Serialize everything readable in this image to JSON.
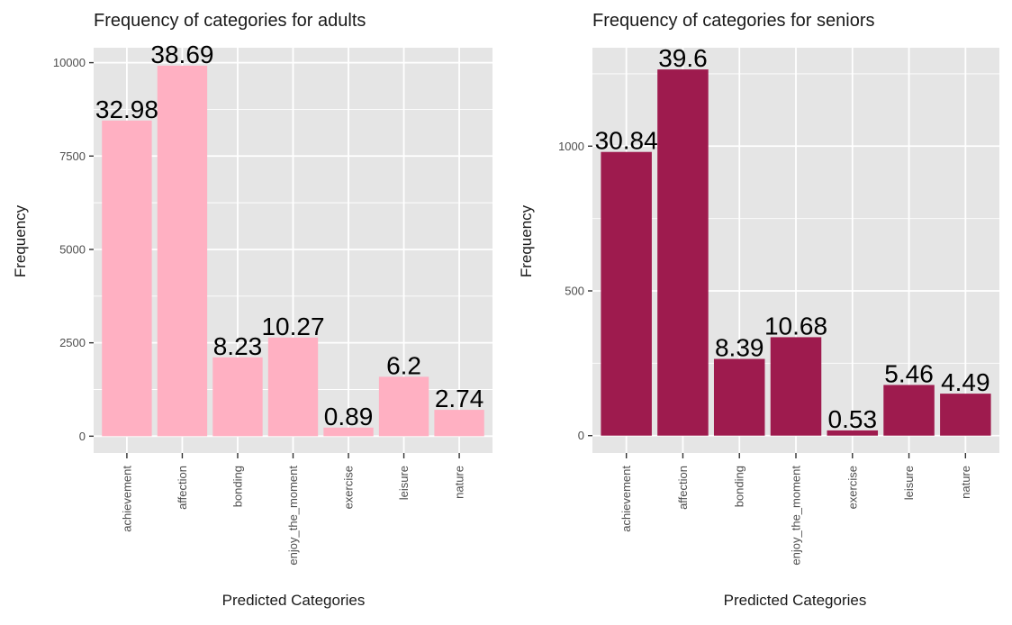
{
  "chart_data": [
    {
      "type": "bar",
      "title": "Frequency of categories for adults",
      "xlabel": "Predicted Categories",
      "ylabel": "Frequency",
      "categories": [
        "achievement",
        "affection",
        "bonding",
        "enjoy_the_moment",
        "exercise",
        "leisure",
        "nature"
      ],
      "values": [
        8450,
        9920,
        2110,
        2640,
        230,
        1590,
        705
      ],
      "data_labels": [
        "32.98",
        "38.69",
        "8.23",
        "10.27",
        "0.89",
        "6.2",
        "2.74"
      ],
      "yticks": [
        0,
        2500,
        5000,
        7500,
        10000
      ],
      "ytick_labels": [
        "0",
        "2500",
        "5000",
        "7500",
        "10000"
      ],
      "ylim": [
        -450,
        10400
      ],
      "bar_color": "#FFB0C2",
      "panel_bg": "#E5E5E5",
      "grid_color": "#FFFFFF",
      "grid": true,
      "legend": "none"
    },
    {
      "type": "bar",
      "title": "Frequency of categories for seniors",
      "xlabel": "Predicted Categories",
      "ylabel": "Frequency",
      "categories": [
        "achievement",
        "affection",
        "bonding",
        "enjoy_the_moment",
        "exercise",
        "leisure",
        "nature"
      ],
      "values": [
        980,
        1265,
        265,
        340,
        18,
        175,
        145
      ],
      "data_labels": [
        "30.84",
        "39.6",
        "8.39",
        "10.68",
        "0.53",
        "5.46",
        "4.49"
      ],
      "yticks": [
        0,
        500,
        1000
      ],
      "ytick_labels": [
        "0",
        "500",
        "1000"
      ],
      "ylim": [
        -60,
        1340
      ],
      "bar_color": "#9E1B4E",
      "panel_bg": "#E5E5E5",
      "grid_color": "#FFFFFF",
      "grid": true,
      "legend": "none"
    }
  ]
}
